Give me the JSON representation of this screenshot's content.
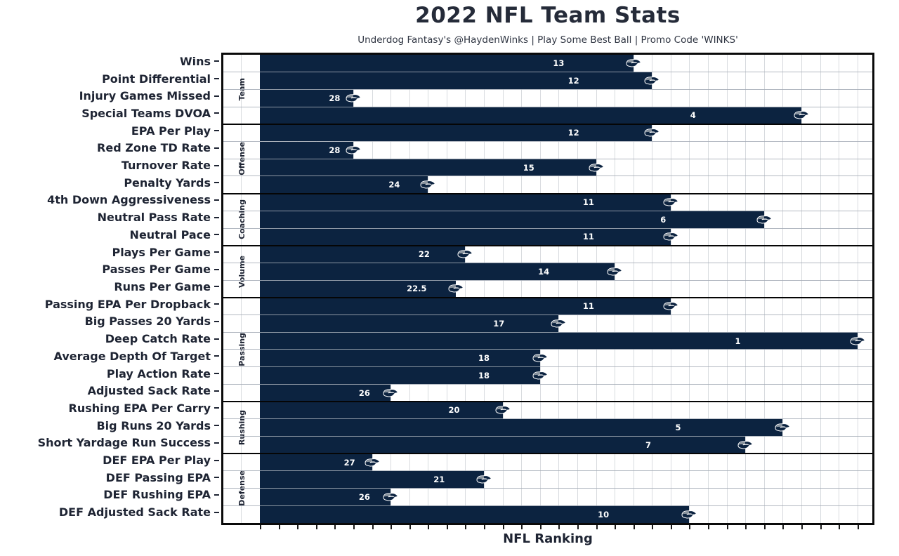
{
  "chart_data": {
    "type": "bar",
    "orientation": "horizontal",
    "title": "2022 NFL Team Stats",
    "subtitle": "Underdog Fantasy's @HaydenWinks | Play Some Best Ball | Promo Code 'WINKS'",
    "xlabel": "NFL Ranking",
    "ylabel": "",
    "x_axis": {
      "min": 0,
      "max": 32.8,
      "ticks_every": 1,
      "tick_labels_shown": false,
      "bar_length_rule": "33 - rank"
    },
    "grid": true,
    "legend": "none",
    "bar_color": "#0c2340",
    "value_label_color": "#ffffff",
    "bar_end_icon": "seahawks-logo",
    "groups": [
      {
        "name": "Team",
        "rows": [
          {
            "label": "Wins",
            "rank": 13
          },
          {
            "label": "Point Differential",
            "rank": 12
          },
          {
            "label": "Injury Games Missed",
            "rank": 28
          },
          {
            "label": "Special Teams DVOA",
            "rank": 4
          }
        ]
      },
      {
        "name": "Offense",
        "rows": [
          {
            "label": "EPA Per Play",
            "rank": 12
          },
          {
            "label": "Red Zone TD Rate",
            "rank": 28
          },
          {
            "label": "Turnover Rate",
            "rank": 15
          },
          {
            "label": "Penalty Yards",
            "rank": 24
          }
        ]
      },
      {
        "name": "Coaching",
        "rows": [
          {
            "label": "4th Down Aggressiveness",
            "rank": 11
          },
          {
            "label": "Neutral Pass Rate",
            "rank": 6
          },
          {
            "label": "Neutral Pace",
            "rank": 11
          }
        ]
      },
      {
        "name": "Volume",
        "rows": [
          {
            "label": "Plays Per Game",
            "rank": 22
          },
          {
            "label": "Passes Per Game",
            "rank": 14
          },
          {
            "label": "Runs Per Game",
            "rank": 22.5
          }
        ]
      },
      {
        "name": "Passing",
        "rows": [
          {
            "label": "Passing EPA Per Dropback",
            "rank": 11
          },
          {
            "label": "Big Passes 20 Yards",
            "rank": 17
          },
          {
            "label": "Deep Catch Rate",
            "rank": 1
          },
          {
            "label": "Average Depth Of Target",
            "rank": 18
          },
          {
            "label": "Play Action Rate",
            "rank": 18
          },
          {
            "label": "Adjusted Sack Rate",
            "rank": 26
          }
        ]
      },
      {
        "name": "Rushing",
        "rows": [
          {
            "label": "Rushing EPA Per Carry",
            "rank": 20
          },
          {
            "label": "Big Runs 20 Yards",
            "rank": 5
          },
          {
            "label": "Short Yardage Run Success",
            "rank": 7
          }
        ]
      },
      {
        "name": "Defense",
        "rows": [
          {
            "label": "DEF EPA Per Play",
            "rank": 27
          },
          {
            "label": "DEF Passing EPA",
            "rank": 21
          },
          {
            "label": "DEF Rushing EPA",
            "rank": 26
          },
          {
            "label": "DEF Adjusted Sack Rate",
            "rank": 10
          }
        ]
      }
    ]
  },
  "colors": {
    "bar": "#0c2340",
    "title": "#252b39",
    "label": "#1e2433",
    "grid_vertical": "#d8dbdf",
    "grid_horizontal": "#a5abb6",
    "separator": "#050505",
    "logo_gray": "#8a949e",
    "value_text": "#ffffff"
  }
}
